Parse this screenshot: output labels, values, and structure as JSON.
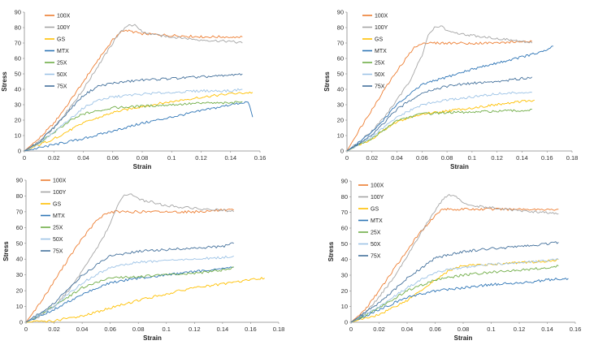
{
  "series_colors": {
    "100X": "#ED7D31",
    "100Y": "#A5A5A5",
    "GS": "#FFC000",
    "MTX": "#2E75B6",
    "25X": "#70AD47",
    "50X": "#9DC3E6",
    "75X": "#44719C"
  },
  "chart_data": [
    {
      "type": "line",
      "xlabel": "Strain",
      "ylabel": "Stress",
      "xlim": [
        0,
        0.16
      ],
      "ylim": [
        0,
        90
      ],
      "xticks": [
        "0",
        "0.02",
        "0.04",
        "0.06",
        "0.08",
        "0.1",
        "0.12",
        "0.14",
        "0.16"
      ],
      "yticks": [
        "0",
        "10",
        "20",
        "30",
        "40",
        "50",
        "60",
        "70",
        "80",
        "90"
      ],
      "legend": [
        "100X",
        "100Y",
        "GS",
        "MTX",
        "25X",
        "50X",
        "75X"
      ],
      "series": [
        {
          "name": "100X",
          "x": [
            0,
            0.01,
            0.02,
            0.03,
            0.04,
            0.05,
            0.06,
            0.065,
            0.07,
            0.08,
            0.1,
            0.12,
            0.14,
            0.148
          ],
          "y": [
            0,
            8,
            18,
            31,
            45,
            59,
            72,
            77,
            78,
            76,
            75,
            74,
            74,
            74
          ]
        },
        {
          "name": "100Y",
          "x": [
            0,
            0.01,
            0.02,
            0.03,
            0.04,
            0.05,
            0.06,
            0.065,
            0.07,
            0.075,
            0.08,
            0.09,
            0.1,
            0.12,
            0.14,
            0.148
          ],
          "y": [
            0,
            6,
            15,
            27,
            40,
            55,
            70,
            77,
            81,
            82,
            77,
            75,
            74,
            72,
            71,
            70
          ]
        },
        {
          "name": "GS",
          "x": [
            0,
            0.02,
            0.04,
            0.06,
            0.08,
            0.1,
            0.12,
            0.14,
            0.155
          ],
          "y": [
            0,
            8,
            18,
            25,
            29,
            32,
            35,
            37,
            38
          ]
        },
        {
          "name": "MTX",
          "x": [
            0,
            0.02,
            0.04,
            0.06,
            0.08,
            0.1,
            0.12,
            0.14,
            0.152,
            0.155
          ],
          "y": [
            0,
            4,
            8,
            13,
            18,
            22,
            26,
            30,
            32,
            22
          ]
        },
        {
          "name": "25X",
          "x": [
            0,
            0.01,
            0.02,
            0.03,
            0.04,
            0.05,
            0.06,
            0.08,
            0.1,
            0.12,
            0.14,
            0.148
          ],
          "y": [
            0,
            5,
            12,
            19,
            24,
            26,
            28,
            29,
            30,
            31,
            31,
            32
          ]
        },
        {
          "name": "50X",
          "x": [
            0,
            0.01,
            0.02,
            0.03,
            0.04,
            0.05,
            0.06,
            0.08,
            0.1,
            0.12,
            0.14,
            0.148
          ],
          "y": [
            0,
            5,
            12,
            20,
            28,
            33,
            35,
            37,
            38,
            39,
            39,
            40
          ]
        },
        {
          "name": "75X",
          "x": [
            0,
            0.01,
            0.02,
            0.03,
            0.04,
            0.05,
            0.06,
            0.08,
            0.1,
            0.12,
            0.14,
            0.148
          ],
          "y": [
            0,
            6,
            15,
            26,
            36,
            42,
            44,
            46,
            47,
            48,
            49,
            50
          ]
        }
      ]
    },
    {
      "type": "line",
      "xlabel": "Strain",
      "ylabel": "Stress",
      "xlim": [
        0,
        0.18
      ],
      "ylim": [
        0,
        90
      ],
      "xticks": [
        "0",
        "0.02",
        "0.04",
        "0.06",
        "0.08",
        "0.1",
        "0.12",
        "0.14",
        "0.16",
        "0.18"
      ],
      "yticks": [
        "0",
        "10",
        "20",
        "30",
        "40",
        "50",
        "60",
        "70",
        "80",
        "90"
      ],
      "legend": [
        "100X",
        "100Y",
        "GS",
        "MTX",
        "25X",
        "50X",
        "75X"
      ],
      "series": [
        {
          "name": "100X",
          "x": [
            0,
            0.01,
            0.02,
            0.03,
            0.04,
            0.05,
            0.055,
            0.06,
            0.08,
            0.1,
            0.12,
            0.14,
            0.148
          ],
          "y": [
            0,
            14,
            27,
            40,
            52,
            63,
            68,
            70,
            70,
            70,
            70,
            71,
            71
          ]
        },
        {
          "name": "100Y",
          "x": [
            0,
            0.01,
            0.02,
            0.03,
            0.04,
            0.05,
            0.06,
            0.065,
            0.07,
            0.075,
            0.08,
            0.09,
            0.1,
            0.12,
            0.14,
            0.148
          ],
          "y": [
            0,
            6,
            13,
            22,
            33,
            45,
            62,
            75,
            80,
            81,
            78,
            76,
            75,
            73,
            71,
            70
          ]
        },
        {
          "name": "GS",
          "x": [
            0,
            0.02,
            0.04,
            0.06,
            0.08,
            0.1,
            0.12,
            0.14,
            0.15
          ],
          "y": [
            0,
            8,
            19,
            24,
            26,
            28,
            30,
            32,
            33
          ]
        },
        {
          "name": "MTX",
          "x": [
            0,
            0.02,
            0.04,
            0.06,
            0.08,
            0.1,
            0.12,
            0.14,
            0.16,
            0.165
          ],
          "y": [
            0,
            12,
            30,
            43,
            48,
            53,
            57,
            61,
            65,
            68
          ]
        },
        {
          "name": "25X",
          "x": [
            0,
            0.02,
            0.04,
            0.06,
            0.08,
            0.1,
            0.12,
            0.14,
            0.148
          ],
          "y": [
            0,
            8,
            20,
            24,
            25,
            25,
            26,
            26,
            27
          ]
        },
        {
          "name": "50X",
          "x": [
            0,
            0.02,
            0.04,
            0.06,
            0.08,
            0.1,
            0.12,
            0.14,
            0.148
          ],
          "y": [
            0,
            9,
            22,
            30,
            33,
            35,
            37,
            38,
            38
          ]
        },
        {
          "name": "75X",
          "x": [
            0,
            0.02,
            0.04,
            0.06,
            0.08,
            0.1,
            0.12,
            0.14,
            0.148
          ],
          "y": [
            0,
            10,
            27,
            38,
            42,
            44,
            45,
            47,
            48
          ]
        }
      ]
    },
    {
      "type": "line",
      "xlabel": "Strain",
      "ylabel": "Stress",
      "xlim": [
        0,
        0.18
      ],
      "ylim": [
        0,
        90
      ],
      "xticks": [
        "0",
        "0.02",
        "0.04",
        "0.06",
        "0.08",
        "0.1",
        "0.12",
        "0.14",
        "0.16",
        "0.18"
      ],
      "yticks": [
        "0",
        "10",
        "20",
        "30",
        "40",
        "50",
        "60",
        "70",
        "80",
        "90"
      ],
      "legend": [
        "100X",
        "100Y",
        "GS",
        "MTX",
        "25X",
        "50X",
        "75X"
      ],
      "series": [
        {
          "name": "100X",
          "x": [
            0,
            0.01,
            0.02,
            0.03,
            0.04,
            0.05,
            0.055,
            0.06,
            0.08,
            0.1,
            0.12,
            0.14,
            0.148
          ],
          "y": [
            0,
            12,
            26,
            40,
            53,
            64,
            68,
            70,
            70,
            70,
            70,
            71,
            71
          ]
        },
        {
          "name": "100Y",
          "x": [
            0,
            0.01,
            0.02,
            0.03,
            0.04,
            0.05,
            0.06,
            0.065,
            0.07,
            0.075,
            0.08,
            0.09,
            0.1,
            0.12,
            0.14,
            0.148
          ],
          "y": [
            0,
            4,
            10,
            20,
            32,
            46,
            62,
            74,
            80,
            81,
            78,
            76,
            74,
            72,
            71,
            70
          ]
        },
        {
          "name": "GS",
          "x": [
            0,
            0.02,
            0.04,
            0.06,
            0.08,
            0.1,
            0.12,
            0.14,
            0.16,
            0.17
          ],
          "y": [
            0,
            1,
            4,
            9,
            14,
            18,
            22,
            24,
            27,
            28
          ]
        },
        {
          "name": "MTX",
          "x": [
            0,
            0.02,
            0.04,
            0.06,
            0.08,
            0.1,
            0.12,
            0.14,
            0.148
          ],
          "y": [
            0,
            8,
            18,
            25,
            28,
            30,
            32,
            34,
            35
          ]
        },
        {
          "name": "25X",
          "x": [
            0,
            0.02,
            0.04,
            0.06,
            0.08,
            0.1,
            0.12,
            0.14,
            0.148
          ],
          "y": [
            0,
            10,
            22,
            28,
            29,
            30,
            31,
            33,
            35
          ]
        },
        {
          "name": "50X",
          "x": [
            0,
            0.02,
            0.04,
            0.06,
            0.08,
            0.1,
            0.12,
            0.14,
            0.148
          ],
          "y": [
            0,
            10,
            25,
            35,
            38,
            39,
            40,
            41,
            42
          ]
        },
        {
          "name": "75X",
          "x": [
            0,
            0.02,
            0.04,
            0.06,
            0.08,
            0.1,
            0.12,
            0.14,
            0.148
          ],
          "y": [
            0,
            12,
            30,
            42,
            45,
            46,
            47,
            48,
            50
          ]
        }
      ]
    },
    {
      "type": "line",
      "xlabel": "Strain",
      "ylabel": "Stress",
      "xlim": [
        0,
        0.16
      ],
      "ylim": [
        0,
        90
      ],
      "xticks": [
        "0",
        "0.02",
        "0.04",
        "0.06",
        "0.08",
        "0.1",
        "0.12",
        "0.14",
        "0.16"
      ],
      "yticks": [
        "0",
        "10",
        "20",
        "30",
        "40",
        "50",
        "60",
        "70",
        "80",
        "90"
      ],
      "legend": [
        "100X",
        "100Y",
        "GS",
        "MTX",
        "25X",
        "50X",
        "75X"
      ],
      "series": [
        {
          "name": "100X",
          "x": [
            0,
            0.01,
            0.02,
            0.03,
            0.04,
            0.05,
            0.06,
            0.065,
            0.08,
            0.1,
            0.12,
            0.14,
            0.148
          ],
          "y": [
            0,
            8,
            20,
            33,
            46,
            58,
            68,
            72,
            72,
            72,
            72,
            72,
            72
          ]
        },
        {
          "name": "100Y",
          "x": [
            0,
            0.01,
            0.02,
            0.03,
            0.04,
            0.05,
            0.06,
            0.065,
            0.07,
            0.075,
            0.08,
            0.09,
            0.1,
            0.12,
            0.14,
            0.148
          ],
          "y": [
            0,
            6,
            16,
            28,
            42,
            57,
            71,
            78,
            81,
            80,
            76,
            74,
            73,
            71,
            70,
            69
          ]
        },
        {
          "name": "GS",
          "x": [
            0,
            0.02,
            0.04,
            0.06,
            0.07,
            0.08,
            0.1,
            0.12,
            0.14,
            0.148
          ],
          "y": [
            0,
            5,
            14,
            27,
            33,
            36,
            37,
            38,
            39,
            40
          ]
        },
        {
          "name": "MTX",
          "x": [
            0,
            0.02,
            0.04,
            0.06,
            0.08,
            0.1,
            0.12,
            0.14,
            0.155
          ],
          "y": [
            0,
            8,
            16,
            20,
            22,
            24,
            25,
            27,
            28
          ]
        },
        {
          "name": "25X",
          "x": [
            0,
            0.02,
            0.04,
            0.06,
            0.08,
            0.1,
            0.12,
            0.14,
            0.148
          ],
          "y": [
            0,
            9,
            20,
            27,
            30,
            32,
            33,
            35,
            36
          ]
        },
        {
          "name": "50X",
          "x": [
            0,
            0.02,
            0.04,
            0.06,
            0.08,
            0.1,
            0.12,
            0.14,
            0.148
          ],
          "y": [
            0,
            10,
            22,
            32,
            35,
            37,
            38,
            39,
            40
          ]
        },
        {
          "name": "75X",
          "x": [
            0,
            0.02,
            0.04,
            0.06,
            0.08,
            0.1,
            0.12,
            0.14,
            0.148
          ],
          "y": [
            0,
            12,
            28,
            41,
            45,
            47,
            48,
            50,
            51
          ]
        }
      ]
    }
  ]
}
